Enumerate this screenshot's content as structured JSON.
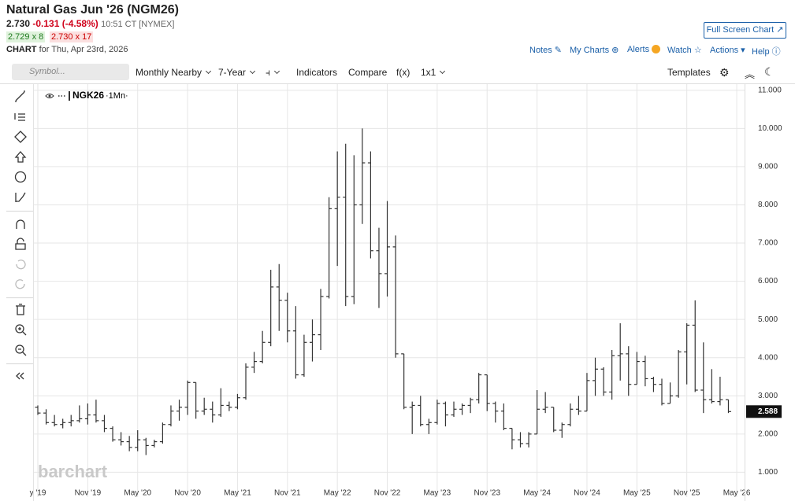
{
  "header": {
    "title": "Natural Gas Jun '26 (NGM26)",
    "last": "2.730",
    "change": "-0.131 (-4.58%)",
    "time": "10:51 CT [NYMEX]",
    "bid": "2.729 x 8",
    "ask": "2.730 x 17",
    "chart_label": "CHART",
    "chart_date": "for Thu, Apr 23rd, 2026",
    "full_screen": "Full Screen Chart"
  },
  "links": [
    "Notes",
    "My Charts",
    "Alerts",
    "Watch",
    "Actions",
    "Help"
  ],
  "toolbar": {
    "symbol_placeholder": "Symbol...",
    "period": "Monthly Nearby",
    "range": "7-Year",
    "indicators": "Indicators",
    "compare": "Compare",
    "fx": "f(x)",
    "layout": "1x1",
    "templates": "Templates"
  },
  "watermark": "barchart",
  "chart_data": {
    "type": "ohlc",
    "categories": [
      "y '19",
      null,
      null,
      null,
      null,
      null,
      "Nov '19",
      null,
      null,
      null,
      null,
      null,
      "May '20",
      null,
      null,
      null,
      null,
      null,
      "Nov '20",
      null,
      null,
      null,
      null,
      null,
      "May '21",
      null,
      null,
      null,
      null,
      null,
      "Nov '21",
      null,
      null,
      null,
      null,
      null,
      "May '22",
      null,
      null,
      null,
      null,
      null,
      "Nov '22",
      null,
      null,
      null,
      null,
      null,
      "May '23",
      null,
      null,
      null,
      null,
      null,
      "Nov '23",
      null,
      null,
      null,
      null,
      null,
      "May '24",
      null,
      null,
      null,
      null,
      null,
      "Nov '24",
      null,
      null,
      null,
      null,
      null,
      "May '25",
      null,
      null,
      null,
      null,
      null,
      "Nov '25",
      null,
      null,
      null,
      null,
      null,
      "May '26"
    ],
    "series": [
      {
        "name": "NGK26",
        "interval": "·1Mn·",
        "color": "#333333",
        "open": [
          2.7,
          2.55,
          2.3,
          2.25,
          2.3,
          2.35,
          2.4,
          2.5,
          2.35,
          2.15,
          1.85,
          1.8,
          1.65,
          1.85,
          1.7,
          1.8,
          2.25,
          2.6,
          2.7,
          3.35,
          2.6,
          2.65,
          2.5,
          2.75,
          2.7,
          2.95,
          3.75,
          3.9,
          4.4,
          5.85,
          5.5,
          4.7,
          3.55,
          4.4,
          4.6,
          5.6,
          7.9,
          8.2,
          5.6,
          8.0,
          9.1,
          6.8,
          6.2,
          6.9,
          4.1,
          2.7,
          2.75,
          2.25,
          2.3,
          2.8,
          2.5,
          2.65,
          2.75,
          2.9,
          3.55,
          2.8,
          2.6,
          2.15,
          1.85,
          1.75,
          2.0,
          2.65,
          2.7,
          2.1,
          2.25,
          2.65,
          2.6,
          3.4,
          3.7,
          3.1,
          4.05,
          4.1,
          3.3,
          3.9,
          3.45,
          3.3,
          2.8,
          3.0,
          4.15,
          4.85,
          3.15,
          2.9,
          2.85,
          2.9,
          null
        ],
        "high": [
          2.75,
          2.65,
          2.5,
          2.4,
          2.5,
          2.75,
          2.8,
          2.9,
          2.5,
          2.2,
          2.05,
          1.95,
          2.1,
          1.9,
          1.85,
          2.3,
          2.75,
          2.9,
          3.4,
          3.35,
          2.95,
          2.85,
          3.2,
          2.85,
          3.05,
          3.85,
          4.15,
          4.7,
          6.3,
          6.45,
          5.7,
          5.35,
          4.6,
          5.0,
          5.8,
          8.2,
          9.4,
          9.6,
          9.3,
          10.0,
          9.4,
          7.4,
          8.1,
          7.2,
          4.1,
          2.85,
          3.0,
          2.4,
          2.9,
          2.85,
          2.85,
          2.8,
          2.95,
          3.6,
          3.55,
          2.85,
          2.8,
          2.15,
          2.05,
          2.05,
          3.15,
          3.1,
          2.7,
          2.3,
          2.8,
          3.0,
          3.6,
          4.0,
          3.75,
          4.2,
          4.9,
          4.3,
          4.15,
          4.05,
          3.5,
          3.45,
          3.35,
          4.2,
          4.9,
          5.5,
          4.4,
          3.7,
          3.5,
          2.9,
          null
        ],
        "low": [
          2.5,
          2.25,
          2.2,
          2.15,
          2.2,
          2.3,
          2.25,
          2.3,
          2.05,
          1.8,
          1.7,
          1.55,
          1.55,
          1.45,
          1.65,
          1.75,
          2.2,
          2.35,
          2.5,
          2.4,
          2.5,
          2.3,
          2.45,
          2.6,
          2.65,
          2.9,
          3.6,
          3.85,
          4.3,
          4.7,
          4.4,
          3.45,
          3.5,
          3.9,
          4.2,
          5.55,
          6.4,
          5.35,
          5.4,
          7.5,
          6.6,
          5.3,
          5.6,
          4.0,
          2.65,
          2.0,
          2.2,
          2.0,
          2.25,
          2.2,
          2.45,
          2.5,
          2.55,
          2.8,
          2.6,
          2.3,
          2.1,
          1.6,
          1.65,
          1.65,
          2.0,
          2.55,
          2.05,
          1.9,
          2.2,
          2.5,
          2.6,
          3.0,
          3.0,
          2.9,
          3.4,
          3.0,
          3.3,
          3.25,
          3.1,
          2.75,
          2.8,
          2.95,
          3.3,
          3.1,
          2.55,
          2.8,
          2.75,
          2.55,
          null
        ],
        "close": [
          2.55,
          2.3,
          2.25,
          2.3,
          2.35,
          2.4,
          2.5,
          2.35,
          2.15,
          1.85,
          1.8,
          1.65,
          1.85,
          1.7,
          1.8,
          2.25,
          2.6,
          2.7,
          3.35,
          2.6,
          2.65,
          2.5,
          2.75,
          2.7,
          2.95,
          3.75,
          3.9,
          4.4,
          5.85,
          5.5,
          4.7,
          3.55,
          4.4,
          4.6,
          5.6,
          7.9,
          8.2,
          5.6,
          8.0,
          9.1,
          6.8,
          6.2,
          6.9,
          4.1,
          2.7,
          2.75,
          2.25,
          2.3,
          2.8,
          2.5,
          2.65,
          2.75,
          2.9,
          3.55,
          2.8,
          2.6,
          2.15,
          1.85,
          1.75,
          2.0,
          2.65,
          2.7,
          2.1,
          2.25,
          2.65,
          2.6,
          3.4,
          3.7,
          3.1,
          4.05,
          4.1,
          3.3,
          3.9,
          3.45,
          3.3,
          2.8,
          3.0,
          4.15,
          4.85,
          3.15,
          2.9,
          2.85,
          2.9,
          2.588,
          null
        ]
      }
    ],
    "ylim": [
      0.35,
      11.16
    ],
    "yticks": [
      {
        "value": 1,
        "label": "1.000"
      },
      {
        "value": 2,
        "label": "2.000"
      },
      {
        "value": 3,
        "label": "3.000"
      },
      {
        "value": 4,
        "label": "4.000"
      },
      {
        "value": 5,
        "label": "5.000"
      },
      {
        "value": 6,
        "label": "6.000"
      },
      {
        "value": 7,
        "label": "7.000"
      },
      {
        "value": 8,
        "label": "8.000"
      },
      {
        "value": 9,
        "label": "9.000"
      },
      {
        "value": 10,
        "label": "10.000"
      },
      {
        "value": 11,
        "label": "11.000"
      }
    ],
    "grid": true
  }
}
